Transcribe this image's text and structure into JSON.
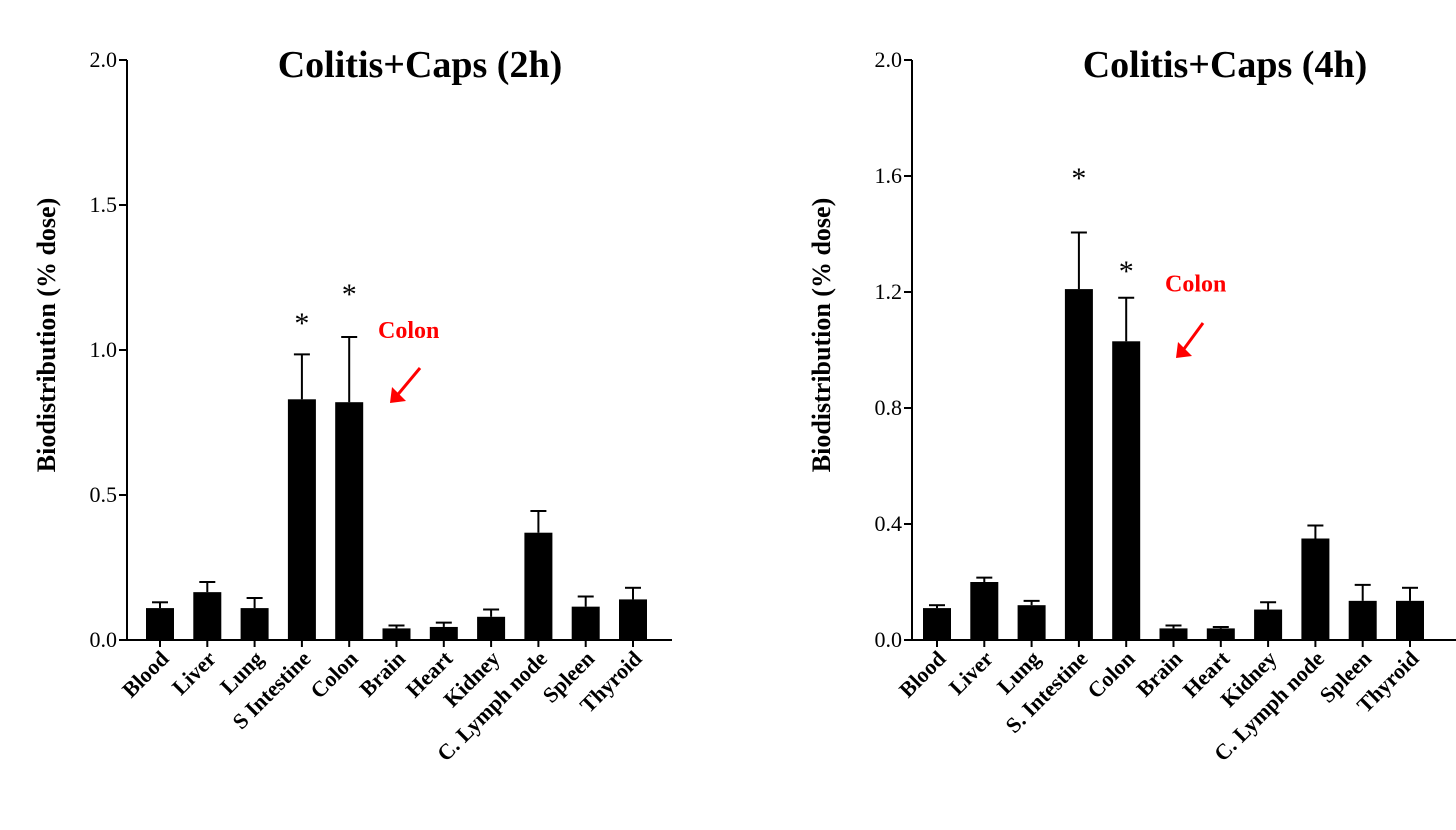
{
  "chart_data": [
    {
      "type": "bar",
      "title": "Colitis+Caps (2h)",
      "ylabel": "Biodistribution (% dose)",
      "ylim": [
        0,
        2.0
      ],
      "yticks": [
        "0.0",
        "0.5",
        "1.0",
        "1.5",
        "2.0"
      ],
      "categories": [
        "Blood",
        "Liver",
        "Lung",
        "S Intestine",
        "Colon",
        "Brain",
        "Heart",
        "Kidney",
        "C. Lymph node",
        "Spleen",
        "Thyroid"
      ],
      "values": [
        0.11,
        0.165,
        0.11,
        0.83,
        0.82,
        0.04,
        0.045,
        0.08,
        0.37,
        0.115,
        0.14
      ],
      "errors": [
        0.02,
        0.035,
        0.035,
        0.155,
        0.225,
        0.01,
        0.015,
        0.025,
        0.075,
        0.035,
        0.04
      ],
      "significance": [
        {
          "category": "S Intestine",
          "mark": "*",
          "y": 1.12
        },
        {
          "category": "Colon",
          "mark": "*",
          "y": 1.22
        }
      ],
      "annotation": {
        "text": "Colon",
        "color": "#ff0000",
        "y": 1.0
      }
    },
    {
      "type": "bar",
      "title": "Colitis+Caps (4h)",
      "ylabel": "Biodistribution (% dose)",
      "ylim": [
        0,
        2.0
      ],
      "yticks": [
        "0.0",
        "0.4",
        "0.8",
        "1.2",
        "1.6",
        "2.0"
      ],
      "categories": [
        "Blood",
        "Liver",
        "Lung",
        "S. Intestine",
        "Colon",
        "Brain",
        "Heart",
        "Kidney",
        "C. Lymph node",
        "Spleen",
        "Thyroid"
      ],
      "values": [
        0.11,
        0.2,
        0.12,
        1.21,
        1.03,
        0.04,
        0.04,
        0.105,
        0.35,
        0.135,
        0.135
      ],
      "errors": [
        0.01,
        0.015,
        0.015,
        0.195,
        0.15,
        0.01,
        0.005,
        0.025,
        0.045,
        0.055,
        0.045
      ],
      "significance": [
        {
          "category": "S. Intestine",
          "mark": "*",
          "y": 1.62
        },
        {
          "category": "Colon",
          "mark": "*",
          "y": 1.3
        }
      ],
      "annotation": {
        "text": "Colon",
        "color": "#ff0000",
        "y": 1.16
      }
    }
  ]
}
